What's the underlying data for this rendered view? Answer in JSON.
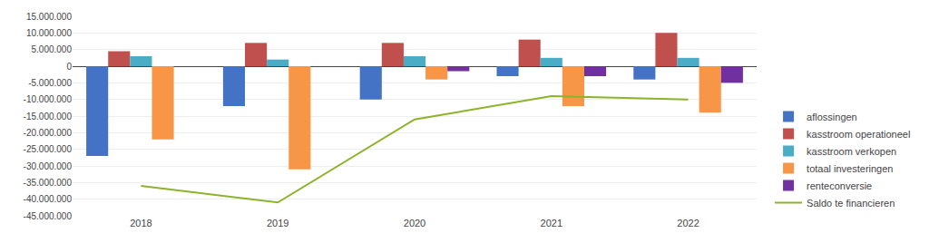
{
  "chart_data": {
    "type": "bar",
    "categories": [
      "2018",
      "2019",
      "2020",
      "2021",
      "2022"
    ],
    "series": [
      {
        "name": "aflossingen",
        "color": "#4472C4",
        "values": [
          -27000000,
          -12000000,
          -10000000,
          -3000000,
          -4000000
        ]
      },
      {
        "name": "kasstroom operationeel",
        "color": "#C0504D",
        "values": [
          4500000,
          7000000,
          7000000,
          8000000,
          10000000
        ]
      },
      {
        "name": "kasstroom verkopen",
        "color": "#4BACC6",
        "values": [
          3000000,
          2000000,
          3000000,
          2500000,
          2500000
        ]
      },
      {
        "name": "totaal investeringen",
        "color": "#F79646",
        "values": [
          -22000000,
          -31000000,
          -4000000,
          -12000000,
          -14000000
        ]
      },
      {
        "name": "renteconversie",
        "color": "#7030A0",
        "values": [
          0,
          0,
          -1500000,
          -3000000,
          -5000000
        ]
      },
      {
        "name": "Saldo te financieren",
        "type": "line",
        "color": "#8DB32A",
        "values": [
          -36000000,
          -41000000,
          -16000000,
          -9000000,
          -10000000
        ]
      }
    ],
    "ylim": [
      -45000000,
      15000000
    ],
    "yticks": [
      {
        "value": -45000000,
        "label": "-45.000.000"
      },
      {
        "value": -40000000,
        "label": "-40.000.000"
      },
      {
        "value": -35000000,
        "label": "-35.000.000"
      },
      {
        "value": -30000000,
        "label": "-30.000.000"
      },
      {
        "value": -25000000,
        "label": "-25.000.000"
      },
      {
        "value": -20000000,
        "label": "-20.000.000"
      },
      {
        "value": -15000000,
        "label": "-15.000.000"
      },
      {
        "value": -10000000,
        "label": "-10.000.000"
      },
      {
        "value": -5000000,
        "label": "-5.000.000"
      },
      0,
      {
        "value": 5000000,
        "label": "5.000.000"
      },
      {
        "value": 10000000,
        "label": "10.000.000"
      },
      {
        "value": 15000000,
        "label": "15.000.000"
      }
    ],
    "grid": true,
    "legend": "lower right"
  }
}
